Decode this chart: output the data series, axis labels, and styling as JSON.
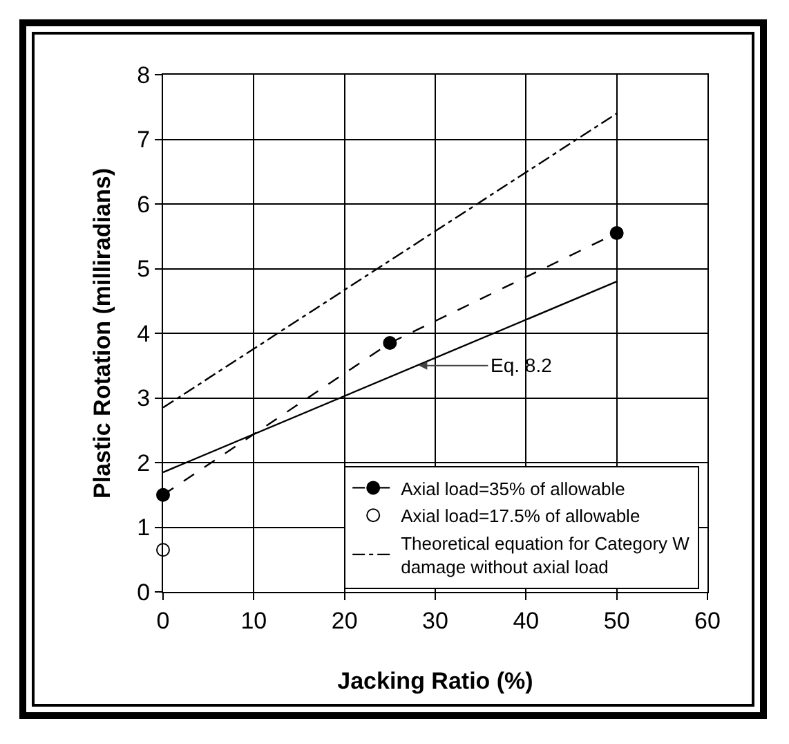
{
  "chart_data": {
    "type": "line",
    "xlabel": "Jacking Ratio (%)",
    "ylabel": "Plastic Rotation (milliradians)",
    "xlim": [
      0,
      60
    ],
    "xticks": [
      0,
      10,
      20,
      30,
      40,
      50,
      60
    ],
    "ylim": [
      0,
      8
    ],
    "yticks": [
      0,
      1,
      2,
      3,
      4,
      5,
      6,
      7,
      8
    ],
    "grid": true,
    "legend": "bottom right",
    "series": [
      {
        "name": "Axial load=35% of allowable",
        "line_style": "dashed",
        "marker": "circle",
        "color": "#000000",
        "x": [
          0,
          25,
          50
        ],
        "values": [
          1.5,
          3.85,
          5.55
        ]
      },
      {
        "name": "Axial load=17.5% of allowable",
        "type": "scatter",
        "marker": "circle",
        "color": "#ffffff",
        "x": [
          0
        ],
        "values": [
          0.65
        ]
      },
      {
        "name": "Theoretical equation for Category W damage without axial load",
        "line_style": "dashdot",
        "marker": "none",
        "color": "#000000",
        "x": [
          0,
          50
        ],
        "values": [
          2.85,
          7.4
        ]
      },
      {
        "line_style": "solid",
        "marker": "none",
        "color": "#000000",
        "x": [
          0,
          50
        ],
        "values": [
          1.85,
          4.8
        ]
      }
    ],
    "annotations": [
      {
        "text": "Eq. 8.2",
        "x": 28.2,
        "y": 3.5
      }
    ]
  }
}
